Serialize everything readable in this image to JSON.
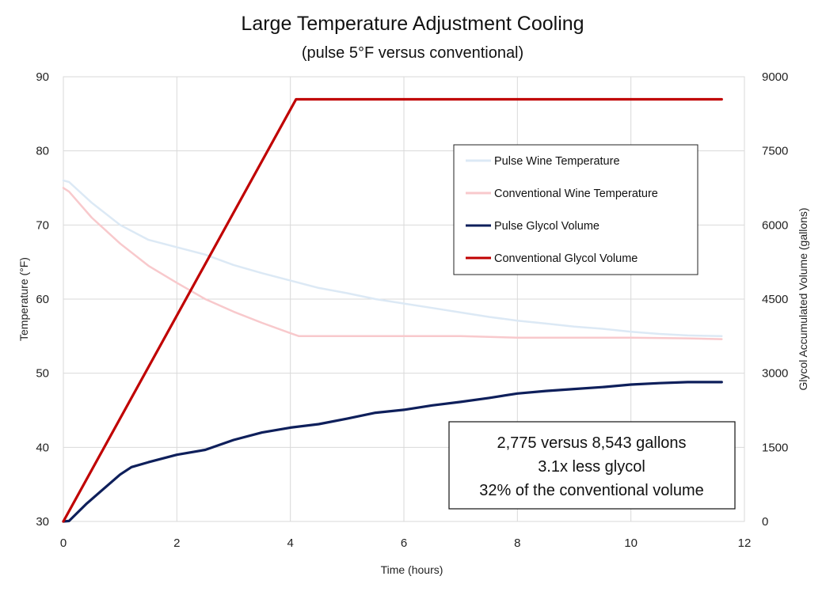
{
  "chart_data": {
    "type": "line",
    "title": "Large Temperature Adjustment Cooling",
    "subtitle": "(pulse 5°F versus conventional)",
    "xlabel": "Time (hours)",
    "ylabel": "Temperature (°F)",
    "y2label": "Glycol Accumulated Volume (gallons)",
    "xlim": [
      0,
      12
    ],
    "ylim": [
      30,
      90
    ],
    "y2lim": [
      0,
      9000
    ],
    "xticks": [
      "0",
      "2",
      "4",
      "6",
      "8",
      "10",
      "12"
    ],
    "yticks": [
      "30",
      "40",
      "50",
      "60",
      "70",
      "80",
      "90"
    ],
    "y2ticks": [
      "0",
      "1500",
      "3000",
      "4500",
      "6000",
      "7500",
      "9000"
    ],
    "grid": true,
    "legend_position": "upper-right",
    "series": [
      {
        "name": "Pulse Wine Temperature",
        "axis": "left",
        "color": "#dce9f5",
        "x": [
          0,
          0.1,
          0.5,
          1,
          1.5,
          2,
          2.5,
          3,
          3.5,
          4,
          4.5,
          5,
          5.5,
          6,
          6.5,
          7,
          7.5,
          8,
          8.5,
          9,
          9.5,
          10,
          10.5,
          11,
          11.6
        ],
        "y": [
          76,
          75.8,
          73,
          70,
          68,
          67,
          66,
          64.6,
          63.5,
          62.5,
          61.5,
          60.8,
          60,
          59.4,
          58.8,
          58.2,
          57.6,
          57.1,
          56.7,
          56.3,
          56,
          55.6,
          55.3,
          55.1,
          55
        ]
      },
      {
        "name": "Conventional Wine Temperature",
        "axis": "left",
        "color": "#f8c9cc",
        "x": [
          0,
          0.1,
          0.5,
          1,
          1.5,
          2,
          2.5,
          3,
          3.5,
          4,
          4.15,
          5,
          6,
          7,
          8,
          9,
          10,
          11,
          11.6
        ],
        "y": [
          75,
          74.5,
          71,
          67.5,
          64.5,
          62.2,
          60,
          58.3,
          56.8,
          55.4,
          55,
          55,
          55,
          55,
          54.8,
          54.8,
          54.8,
          54.7,
          54.6
        ]
      },
      {
        "name": "Pulse Glycol Volume",
        "axis": "right",
        "color": "#0e1f5b",
        "x": [
          0,
          0.1,
          0.4,
          0.8,
          1,
          1.2,
          1.5,
          2,
          2.5,
          3,
          3.5,
          4,
          4.5,
          5,
          5.5,
          6,
          6.5,
          7,
          7.5,
          8,
          8.5,
          9,
          9.5,
          10,
          10.5,
          11,
          11.6
        ],
        "y": [
          0,
          10,
          350,
          750,
          950,
          1100,
          1200,
          1350,
          1450,
          1650,
          1800,
          1900,
          1970,
          2080,
          2200,
          2260,
          2350,
          2420,
          2500,
          2590,
          2640,
          2680,
          2720,
          2770,
          2800,
          2820,
          2820
        ]
      },
      {
        "name": "Conventional Glycol Volume",
        "axis": "right",
        "color": "#c00000",
        "x": [
          0,
          4.1,
          11.6
        ],
        "y": [
          0,
          8543,
          8543
        ]
      }
    ],
    "annotation": [
      "2,775 versus 8,543 gallons",
      "3.1x less glycol",
      "32% of the conventional volume"
    ]
  }
}
